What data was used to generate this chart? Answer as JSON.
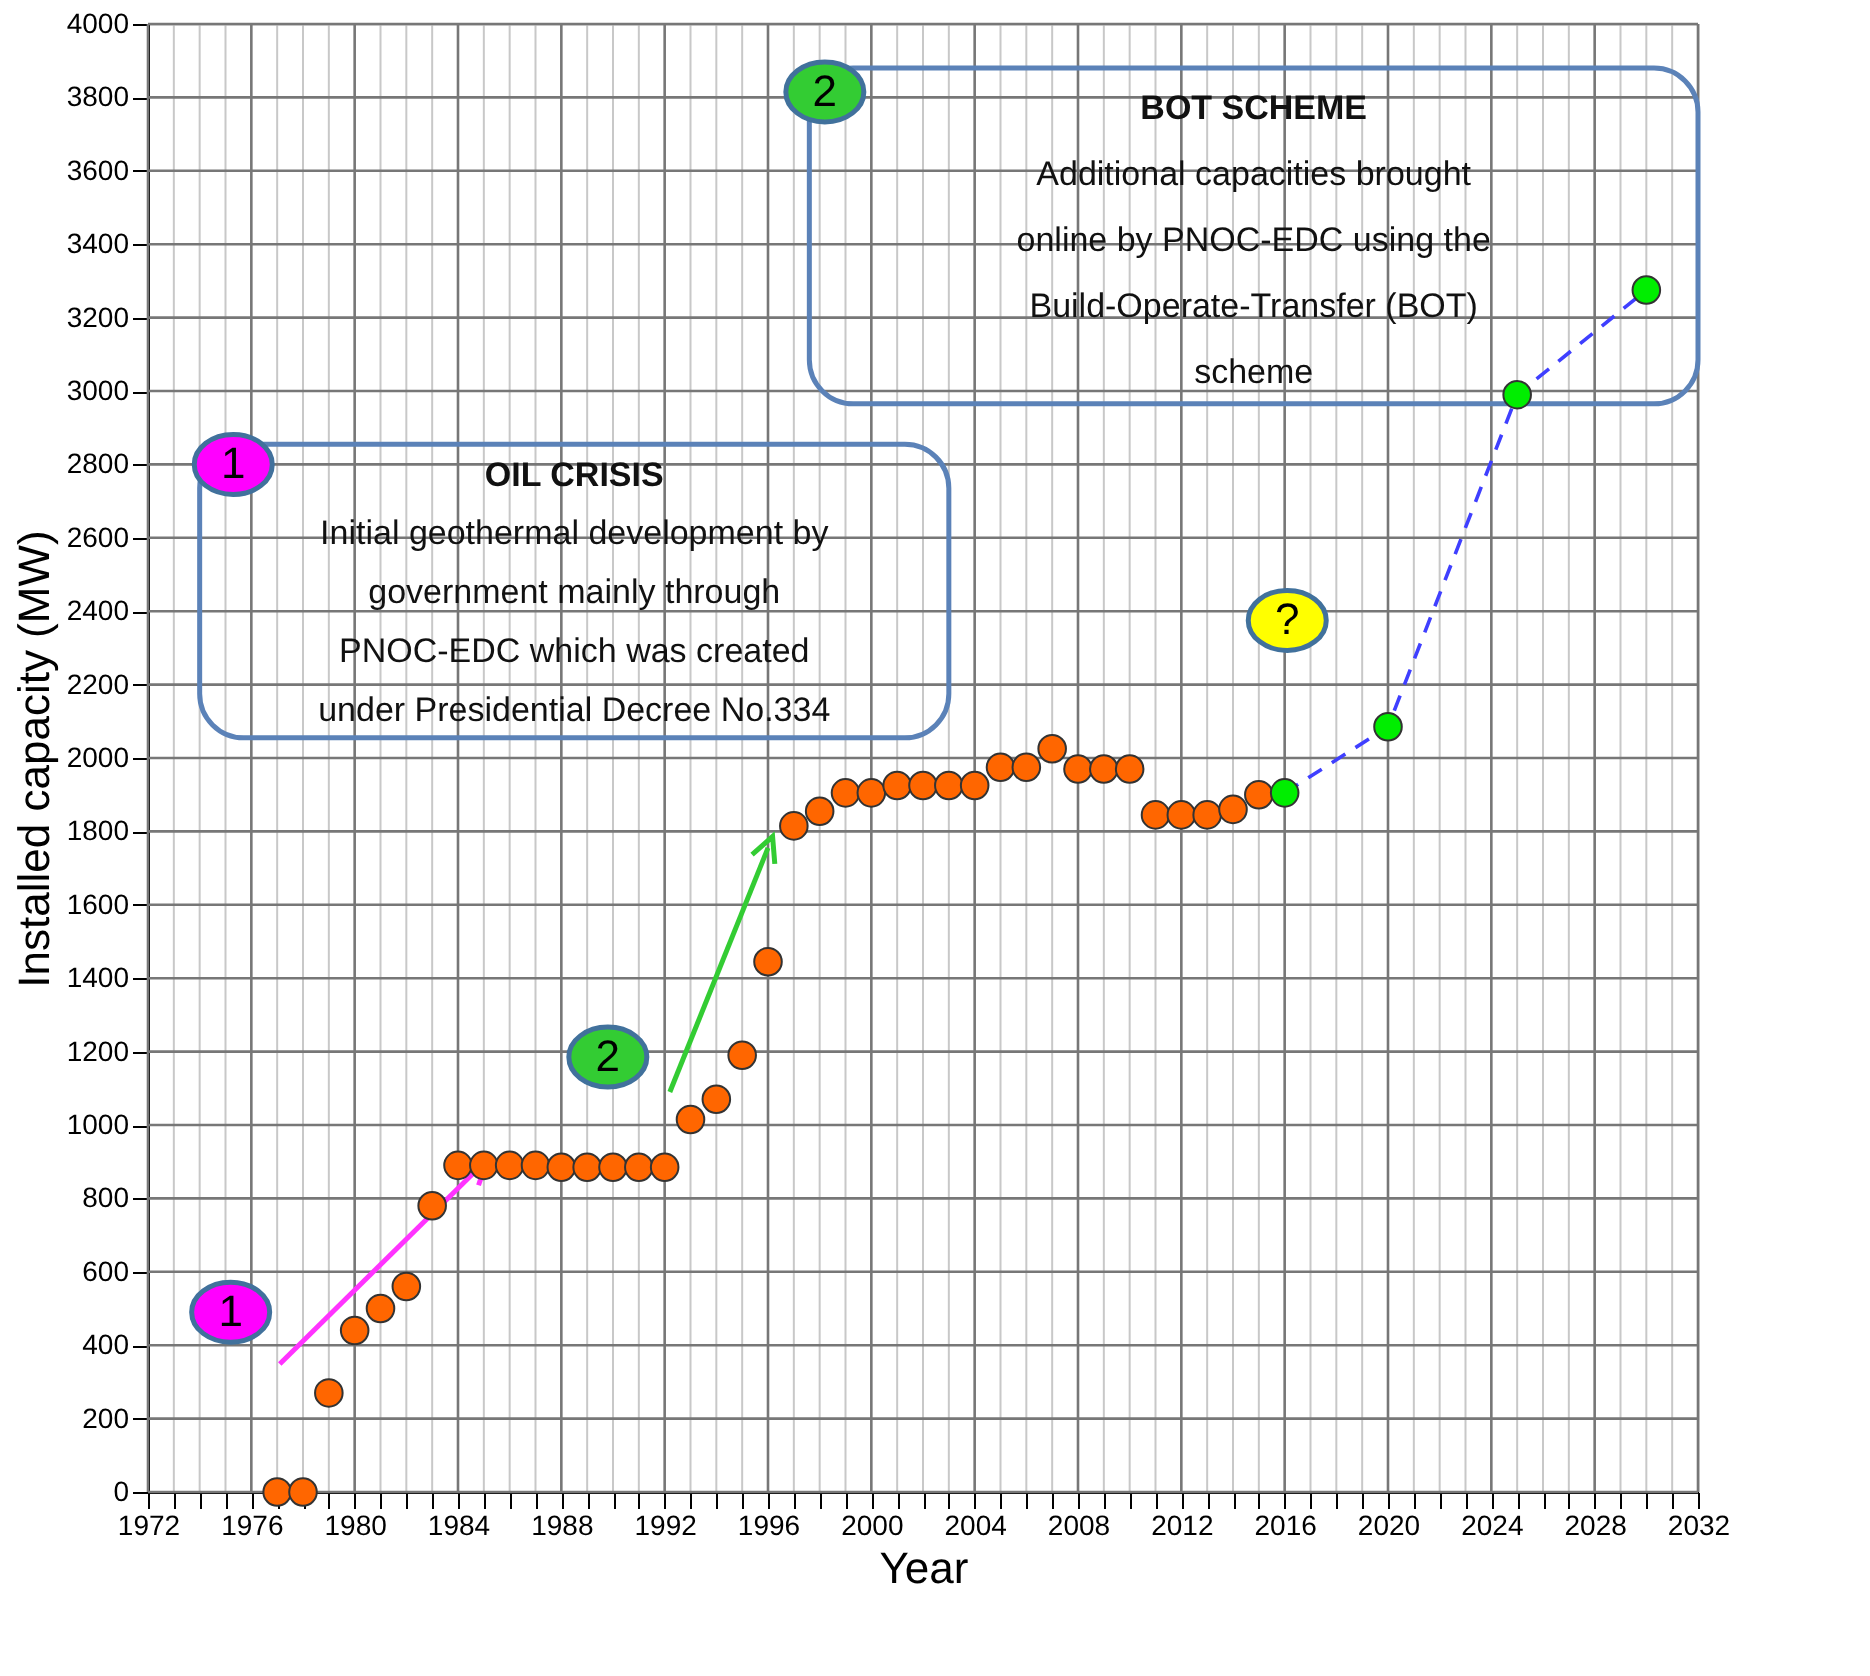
{
  "chart_data": {
    "type": "scatter",
    "xlabel": "Year",
    "ylabel": "Installed capacity (MW)",
    "xlim": [
      1972,
      2032
    ],
    "ylim": [
      0,
      4000
    ],
    "xticks": [
      1972,
      {
        "value": 1973,
        "label": null
      },
      {
        "value": 1974,
        "label": null
      },
      {
        "value": 1975,
        "label": null
      },
      1976,
      {
        "value": 1977,
        "label": null
      },
      {
        "value": 1978,
        "label": null
      },
      {
        "value": 1979,
        "label": null
      },
      1980,
      {
        "value": 1981,
        "label": null
      },
      {
        "value": 1982,
        "label": null
      },
      {
        "value": 1983,
        "label": null
      },
      1984,
      {
        "value": 1985,
        "label": null
      },
      {
        "value": 1986,
        "label": null
      },
      {
        "value": 1987,
        "label": null
      },
      1988,
      {
        "value": 1989,
        "label": null
      },
      {
        "value": 1990,
        "label": null
      },
      {
        "value": 1991,
        "label": null
      },
      1992,
      {
        "value": 1993,
        "label": null
      },
      {
        "value": 1994,
        "label": null
      },
      {
        "value": 1995,
        "label": null
      },
      1996,
      {
        "value": 1997,
        "label": null
      },
      {
        "value": 1998,
        "label": null
      },
      {
        "value": 1999,
        "label": null
      },
      2000,
      {
        "value": 2001,
        "label": null
      },
      {
        "value": 2002,
        "label": null
      },
      {
        "value": 2003,
        "label": null
      },
      2004,
      {
        "value": 2005,
        "label": null
      },
      {
        "value": 2006,
        "label": null
      },
      {
        "value": 2007,
        "label": null
      },
      2008,
      {
        "value": 2009,
        "label": null
      },
      {
        "value": 2010,
        "label": null
      },
      {
        "value": 2011,
        "label": null
      },
      2012,
      {
        "value": 2013,
        "label": null
      },
      {
        "value": 2014,
        "label": null
      },
      {
        "value": 2015,
        "label": null
      },
      2016,
      {
        "value": 2017,
        "label": null
      },
      {
        "value": 2018,
        "label": null
      },
      {
        "value": 2019,
        "label": null
      },
      2020,
      {
        "value": 2021,
        "label": null
      },
      {
        "value": 2022,
        "label": null
      },
      {
        "value": 2023,
        "label": null
      },
      2024,
      {
        "value": 2025,
        "label": null
      },
      {
        "value": 2026,
        "label": null
      },
      {
        "value": 2027,
        "label": null
      },
      2028,
      {
        "value": 2029,
        "label": null
      },
      {
        "value": 2030,
        "label": null
      },
      {
        "value": 2031,
        "label": null
      },
      2032
    ],
    "yticks": [
      0,
      200,
      400,
      600,
      800,
      1000,
      1200,
      1400,
      1600,
      1800,
      2000,
      2200,
      2400,
      2600,
      2800,
      3000,
      3200,
      3400,
      3600,
      3800,
      4000
    ],
    "grid": true,
    "marker": "circle",
    "annotations": [
      "OIL CRISIS",
      "Initial geothermal development by",
      "government mainly through",
      "PNOC-EDC which was created",
      "under Presidential Decree No.334",
      "1",
      "BOT SCHEME",
      "Additional capacities brought",
      "online by PNOC-EDC using the",
      "Build-Operate-Transfer (BOT)",
      "scheme",
      "2",
      {
        "text": "1",
        "x": 1984.8,
        "y": 883
      },
      "2",
      "?"
    ],
    "series": [
      {
        "color": "#ff6600",
        "x": [
          1977,
          1978,
          1979,
          1980,
          1981,
          1982,
          1983,
          1984,
          1985,
          1986,
          1987,
          1988,
          1989,
          1990,
          1991,
          1992,
          1993,
          1994,
          1995,
          1996,
          1997,
          1998,
          1999,
          2000,
          2001,
          2002,
          2003,
          2004,
          2005,
          2006,
          2007,
          2008,
          2009,
          2010,
          2011,
          2012,
          2013,
          2014,
          2015
        ],
        "values": [
          0,
          0,
          270,
          440,
          500,
          560,
          780,
          890,
          890,
          890,
          890,
          885,
          885,
          885,
          885,
          885,
          1015,
          1070,
          1190,
          1445,
          1815,
          1855,
          1905,
          1905,
          1925,
          1925,
          1925,
          1925,
          1975,
          1975,
          2025,
          1970,
          1970,
          1970,
          1845,
          1845,
          1845,
          1860,
          1900
        ]
      },
      {
        "type": "line",
        "color": "#3f3fff",
        "line_style": "dashed",
        "marker": "none",
        "x": [
          2016,
          2020,
          2025,
          2030
        ],
        "values": [
          1905,
          2085,
          2990,
          3275
        ]
      },
      {
        "color": "#00ee00",
        "x": [
          2016,
          2020,
          2025,
          2030
        ],
        "values": [
          1905,
          2085,
          2990,
          3275
        ]
      }
    ]
  }
}
